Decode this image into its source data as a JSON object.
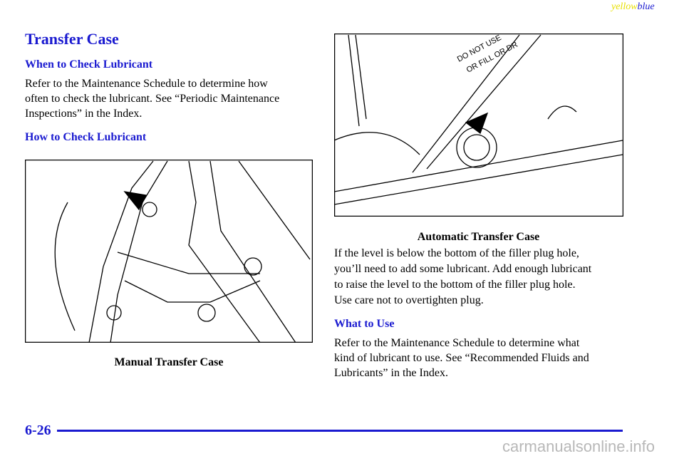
{
  "header": {
    "tag_yellow": "yellow",
    "tag_blue": "blue"
  },
  "title": "Transfer Case",
  "sections": [
    {
      "heading": "When to Check Lubricant",
      "lines": [
        "Refer to the Maintenance Schedule to determine how",
        "often to check the lubricant. See “Periodic Maintenance",
        "Inspections” in the Index."
      ]
    },
    {
      "heading": "How to Check Lubricant"
    }
  ],
  "figures": [
    {
      "caption": "Manual Transfer Case"
    },
    {
      "caption": "Automatic Transfer Case",
      "labels": [
        "DO NOT USE",
        "OR FILL OR DR"
      ]
    }
  ],
  "right_text": {
    "lines": [
      "If the level is below the bottom of the filler plug hole,",
      "you’ll need to add some lubricant. Add enough lubricant",
      "to raise the level to the bottom of the filler plug hole.",
      "Use care not to overtighten plug."
    ],
    "heading": "What to Use",
    "lines2": [
      "Refer to the Maintenance Schedule to determine what",
      "kind of lubricant to use. See “Recommended Fluids and",
      "Lubricants” in the Index."
    ]
  },
  "footer": {
    "page": "6-26",
    "watermark": "carmanualsonline.info"
  }
}
